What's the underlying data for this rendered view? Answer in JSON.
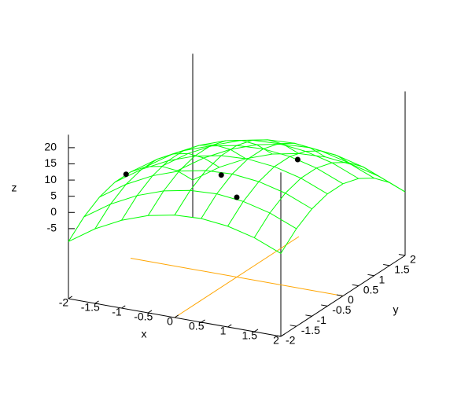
{
  "chart_data": {
    "type": "surface",
    "xlabel": "x",
    "ylabel": "y",
    "zlabel": "z",
    "x": [
      -2,
      -1.5,
      -1,
      -0.5,
      0,
      0.5,
      1,
      1.5,
      2
    ],
    "y": [
      -2,
      -1.5,
      -1,
      -0.5,
      0,
      0.5,
      1,
      1.5,
      2
    ],
    "z": [
      [
        -9,
        -3.6,
        0.5,
        3.4,
        5,
        5.4,
        4.5,
        2.4,
        -1
      ],
      [
        -4.5,
        0.9,
        5,
        7.9,
        9.5,
        9.9,
        9,
        6.9,
        3.5
      ],
      [
        -1.5,
        3.9,
        8,
        10.9,
        12.5,
        12.9,
        12,
        9.9,
        6.5
      ],
      [
        0,
        5.4,
        9.5,
        12.4,
        14,
        14.4,
        13.5,
        11.4,
        8
      ],
      [
        0,
        5.4,
        9.5,
        12.4,
        14,
        14.4,
        13.5,
        11.4,
        8
      ],
      [
        -1.5,
        3.9,
        8,
        10.9,
        12.5,
        12.9,
        12,
        9.9,
        6.5
      ],
      [
        -4.5,
        0.9,
        5,
        7.9,
        9.5,
        9.9,
        9,
        6.9,
        3.5
      ],
      [
        -9,
        -3.6,
        0.5,
        3.4,
        5,
        5.4,
        4.5,
        2.4,
        -1
      ],
      [
        -15,
        -9.6,
        -5.5,
        -2.6,
        -1,
        -0.6,
        -1.5,
        -3.6,
        -7
      ]
    ],
    "color": "#00ff00",
    "xlim": [
      -2,
      2
    ],
    "ylim": [
      -2,
      2
    ],
    "zlim": [
      -6,
      24
    ],
    "xticks": [
      -2,
      -1.5,
      -1,
      -0.5,
      0,
      0.5,
      1,
      1.5,
      2
    ],
    "yticks": [
      -2,
      -1.5,
      -1,
      -0.5,
      0,
      0.5,
      1,
      1.5,
      2
    ],
    "zticks": [
      -5,
      0,
      5,
      10,
      15,
      20
    ],
    "points": {
      "x": [
        -1.5,
        0,
        0,
        1
      ],
      "y": [
        -1,
        -0.5,
        0,
        0.25
      ],
      "z": [
        7,
        8,
        -2,
        11
      ],
      "color": "#000000"
    },
    "zeroaxis": true,
    "zeroaxis_color": "#ffa500"
  }
}
